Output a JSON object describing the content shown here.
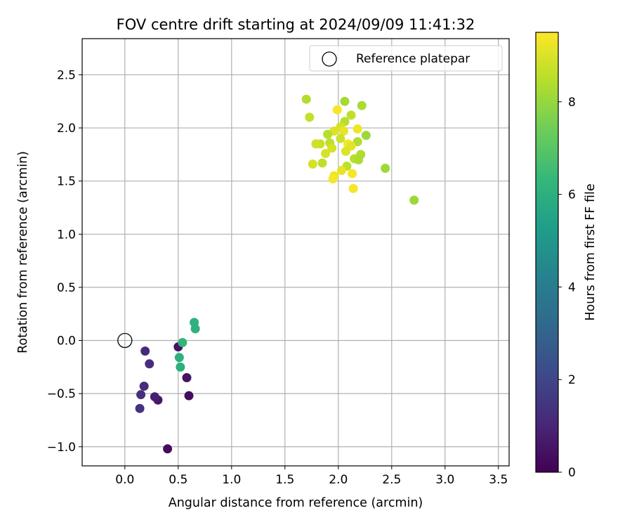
{
  "chart_data": {
    "type": "scatter",
    "title": "FOV centre drift starting at 2024/09/09 11:41:32",
    "xlabel": "Angular distance from reference (arcmin)",
    "ylabel": "Rotation from reference (arcmin)",
    "xlim": [
      -0.4,
      3.6
    ],
    "ylim": [
      -1.18,
      2.84
    ],
    "xticks": [
      0.0,
      0.5,
      1.0,
      1.5,
      2.0,
      2.5,
      3.0,
      3.5
    ],
    "xtick_labels": [
      "0.0",
      "0.5",
      "1.0",
      "1.5",
      "2.0",
      "2.5",
      "3.0",
      "3.5"
    ],
    "yticks": [
      -1.0,
      -0.5,
      0.0,
      0.5,
      1.0,
      1.5,
      2.0,
      2.5
    ],
    "ytick_labels": [
      "−1.0",
      "−0.5",
      "0.0",
      "0.5",
      "1.0",
      "1.5",
      "2.0",
      "2.5"
    ],
    "grid": true,
    "legend": {
      "placement": "top-right",
      "entries": [
        "Reference platepar"
      ]
    },
    "reference_point": {
      "name": "Reference platepar",
      "x": 0.0,
      "y": 0.0
    },
    "colorbar": {
      "label": "Hours from first FF file",
      "colormap": "viridis",
      "min": 0,
      "max": 9.5,
      "ticks": [
        0,
        2,
        4,
        6,
        8
      ],
      "tick_labels": [
        "0",
        "2",
        "4",
        "6",
        "8"
      ]
    },
    "points": [
      {
        "x": 0.4,
        "y": -1.02,
        "t": 0.3
      },
      {
        "x": 0.6,
        "y": -0.52,
        "t": 0.3
      },
      {
        "x": 0.31,
        "y": -0.56,
        "t": 0.6
      },
      {
        "x": 0.28,
        "y": -0.53,
        "t": 0.8
      },
      {
        "x": 0.58,
        "y": -0.35,
        "t": 0.5
      },
      {
        "x": 0.5,
        "y": -0.06,
        "t": 0.5
      },
      {
        "x": 0.19,
        "y": -0.1,
        "t": 1.1
      },
      {
        "x": 0.23,
        "y": -0.22,
        "t": 1.2
      },
      {
        "x": 0.18,
        "y": -0.43,
        "t": 1.2
      },
      {
        "x": 0.15,
        "y": -0.51,
        "t": 1.3
      },
      {
        "x": 0.14,
        "y": -0.64,
        "t": 1.4
      },
      {
        "x": 0.54,
        "y": -0.02,
        "t": 6.2
      },
      {
        "x": 0.51,
        "y": -0.16,
        "t": 6.0
      },
      {
        "x": 0.52,
        "y": -0.25,
        "t": 6.0
      },
      {
        "x": 0.65,
        "y": 0.17,
        "t": 6.1
      },
      {
        "x": 0.66,
        "y": 0.11,
        "t": 6.1
      },
      {
        "x": 1.7,
        "y": 2.27,
        "t": 8.4
      },
      {
        "x": 1.73,
        "y": 2.1,
        "t": 8.7
      },
      {
        "x": 2.06,
        "y": 2.25,
        "t": 8.2
      },
      {
        "x": 2.22,
        "y": 2.21,
        "t": 8.3
      },
      {
        "x": 1.99,
        "y": 2.17,
        "t": 9.4
      },
      {
        "x": 2.12,
        "y": 2.12,
        "t": 8.6
      },
      {
        "x": 2.06,
        "y": 2.06,
        "t": 8.5
      },
      {
        "x": 2.02,
        "y": 2.01,
        "t": 8.9
      },
      {
        "x": 2.18,
        "y": 1.99,
        "t": 9.3
      },
      {
        "x": 1.96,
        "y": 1.97,
        "t": 9.0
      },
      {
        "x": 2.05,
        "y": 1.97,
        "t": 9.2
      },
      {
        "x": 1.9,
        "y": 1.94,
        "t": 8.5
      },
      {
        "x": 2.26,
        "y": 1.93,
        "t": 8.1
      },
      {
        "x": 2.02,
        "y": 1.9,
        "t": 8.8
      },
      {
        "x": 1.83,
        "y": 1.85,
        "t": 8.7
      },
      {
        "x": 1.92,
        "y": 1.86,
        "t": 8.6
      },
      {
        "x": 2.09,
        "y": 1.85,
        "t": 9.4
      },
      {
        "x": 2.18,
        "y": 1.87,
        "t": 8.4
      },
      {
        "x": 1.79,
        "y": 1.85,
        "t": 8.8
      },
      {
        "x": 1.94,
        "y": 1.81,
        "t": 8.9
      },
      {
        "x": 2.12,
        "y": 1.83,
        "t": 9.1
      },
      {
        "x": 2.07,
        "y": 1.78,
        "t": 9.0
      },
      {
        "x": 1.88,
        "y": 1.76,
        "t": 8.9
      },
      {
        "x": 2.21,
        "y": 1.75,
        "t": 8.4
      },
      {
        "x": 2.15,
        "y": 1.71,
        "t": 8.5
      },
      {
        "x": 2.19,
        "y": 1.7,
        "t": 8.3
      },
      {
        "x": 1.76,
        "y": 1.66,
        "t": 8.9
      },
      {
        "x": 1.85,
        "y": 1.67,
        "t": 8.6
      },
      {
        "x": 2.08,
        "y": 1.64,
        "t": 8.6
      },
      {
        "x": 2.44,
        "y": 1.62,
        "t": 8.1
      },
      {
        "x": 2.03,
        "y": 1.6,
        "t": 9.2
      },
      {
        "x": 2.13,
        "y": 1.57,
        "t": 9.4
      },
      {
        "x": 1.96,
        "y": 1.55,
        "t": 9.3
      },
      {
        "x": 1.95,
        "y": 1.52,
        "t": 9.4
      },
      {
        "x": 2.14,
        "y": 1.43,
        "t": 9.4
      },
      {
        "x": 2.71,
        "y": 1.32,
        "t": 8.1
      }
    ]
  }
}
